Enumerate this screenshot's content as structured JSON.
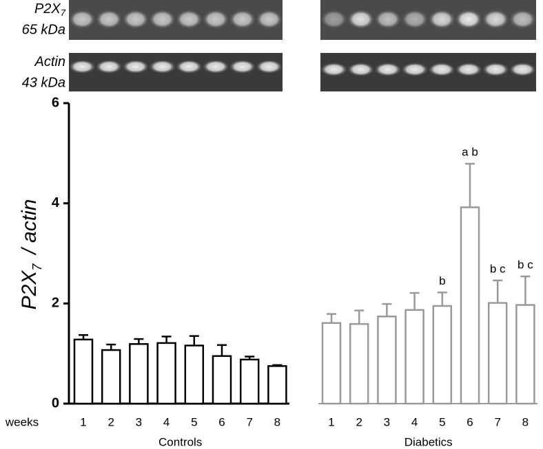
{
  "chart_data": {
    "type": "bar",
    "blots": [
      {
        "label": "P2X",
        "label_sub": "7",
        "size": "65 kDa"
      },
      {
        "label": "Actin",
        "size": "43 kDa"
      }
    ],
    "ylabel": "P2X",
    "ylabel_sub": "7",
    "ylabel_rest": "/ actin",
    "x_prefix": "weeks",
    "categories": [
      "1",
      "2",
      "3",
      "4",
      "5",
      "6",
      "7",
      "8"
    ],
    "ylim": [
      0,
      6
    ],
    "yticks": [
      0,
      2,
      4,
      6
    ],
    "groups": [
      {
        "name": "Controls",
        "color": "#000000",
        "values": [
          1.28,
          1.07,
          1.19,
          1.21,
          1.16,
          0.95,
          0.88,
          0.75
        ],
        "errors": [
          0.09,
          0.11,
          0.1,
          0.13,
          0.19,
          0.22,
          0.06,
          0.02
        ]
      },
      {
        "name": "Diabetics",
        "color": "#999999",
        "values": [
          1.61,
          1.59,
          1.74,
          1.87,
          1.95,
          3.92,
          2.01,
          1.97
        ],
        "errors": [
          0.18,
          0.27,
          0.25,
          0.34,
          0.27,
          0.87,
          0.45,
          0.57
        ],
        "annotations": [
          null,
          null,
          null,
          null,
          "b",
          "a b",
          "b c",
          "b c"
        ]
      }
    ]
  }
}
